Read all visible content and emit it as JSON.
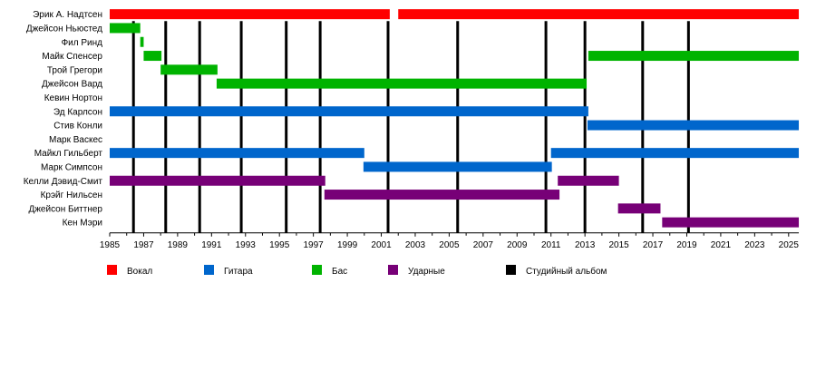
{
  "chart_data": {
    "type": "timeline",
    "title": "",
    "xlim": [
      1985,
      2025.6
    ],
    "x_ticks": [
      "1985",
      "1987",
      "1989",
      "1991",
      "1993",
      "1995",
      "1997",
      "1999",
      "2001",
      "2003",
      "2005",
      "2007",
      "2009",
      "2011",
      "2013",
      "2015",
      "2017",
      "2019",
      "2021",
      "2023",
      "2025"
    ],
    "roles": {
      "vocals": {
        "label": "Вокал",
        "color": "#ff0000"
      },
      "guitar": {
        "label": "Гитара",
        "color": "#0066cc"
      },
      "bass": {
        "label": "Бас",
        "color": "#00b300"
      },
      "drums": {
        "label": "Ударные",
        "color": "#770077"
      },
      "album": {
        "label": "Студийный альбом",
        "color": "#000000"
      }
    },
    "legend_order": [
      "vocals",
      "guitar",
      "bass",
      "drums",
      "album"
    ],
    "albums": [
      1986.4,
      1988.3,
      1990.3,
      1992.75,
      1995.4,
      1997.4,
      2001.4,
      2005.5,
      2010.7,
      2013.0,
      2016.4,
      2019.1
    ],
    "members": [
      {
        "name": "Эрик А. Надтсен",
        "periods": [
          {
            "role": "vocals",
            "start": 1985,
            "end": 2001.5
          },
          {
            "role": "vocals",
            "start": 2002,
            "end": 2025.6
          }
        ]
      },
      {
        "name": "Джейсон Ньюстед",
        "periods": [
          {
            "role": "bass",
            "start": 1985,
            "end": 1986.8
          }
        ]
      },
      {
        "name": "Фил Ринд",
        "periods": [
          {
            "role": "bass",
            "start": 1986.8,
            "end": 1987.0
          }
        ]
      },
      {
        "name": "Майк Спенсер",
        "periods": [
          {
            "role": "bass",
            "start": 1987.0,
            "end": 1988.05
          },
          {
            "role": "bass",
            "start": 2013.2,
            "end": 2025.6
          }
        ]
      },
      {
        "name": "Трой Грегори",
        "periods": [
          {
            "role": "bass",
            "start": 1988.0,
            "end": 1991.35
          }
        ]
      },
      {
        "name": "Джейсон Вард",
        "periods": [
          {
            "role": "bass",
            "start": 1991.3,
            "end": 2013.1
          }
        ]
      },
      {
        "name": "Кевин Нортон",
        "periods": []
      },
      {
        "name": "Эд Карлсон",
        "periods": [
          {
            "role": "guitar",
            "start": 1985,
            "end": 2013.2
          }
        ]
      },
      {
        "name": "Стив Конли",
        "periods": [
          {
            "role": "guitar",
            "start": 2013.15,
            "end": 2025.6
          }
        ]
      },
      {
        "name": "Марк Васкес",
        "periods": []
      },
      {
        "name": "Майкл Гильберт",
        "periods": [
          {
            "role": "guitar",
            "start": 1985,
            "end": 2000.0
          },
          {
            "role": "guitar",
            "start": 2011.0,
            "end": 2025.6
          }
        ]
      },
      {
        "name": "Марк Симпсон",
        "periods": [
          {
            "role": "guitar",
            "start": 1999.95,
            "end": 2011.05
          }
        ]
      },
      {
        "name": "Келли Дэвид-Смит",
        "periods": [
          {
            "role": "drums",
            "start": 1985,
            "end": 1997.7
          },
          {
            "role": "drums",
            "start": 2011.4,
            "end": 2015.0
          }
        ]
      },
      {
        "name": "Крэйг Нильсен",
        "periods": [
          {
            "role": "drums",
            "start": 1997.65,
            "end": 2011.5
          }
        ]
      },
      {
        "name": "Джейсон Биттнер",
        "periods": [
          {
            "role": "drums",
            "start": 2014.95,
            "end": 2017.45
          }
        ]
      },
      {
        "name": "Кен Мэри",
        "periods": [
          {
            "role": "drums",
            "start": 2017.55,
            "end": 2025.6
          }
        ]
      }
    ]
  }
}
